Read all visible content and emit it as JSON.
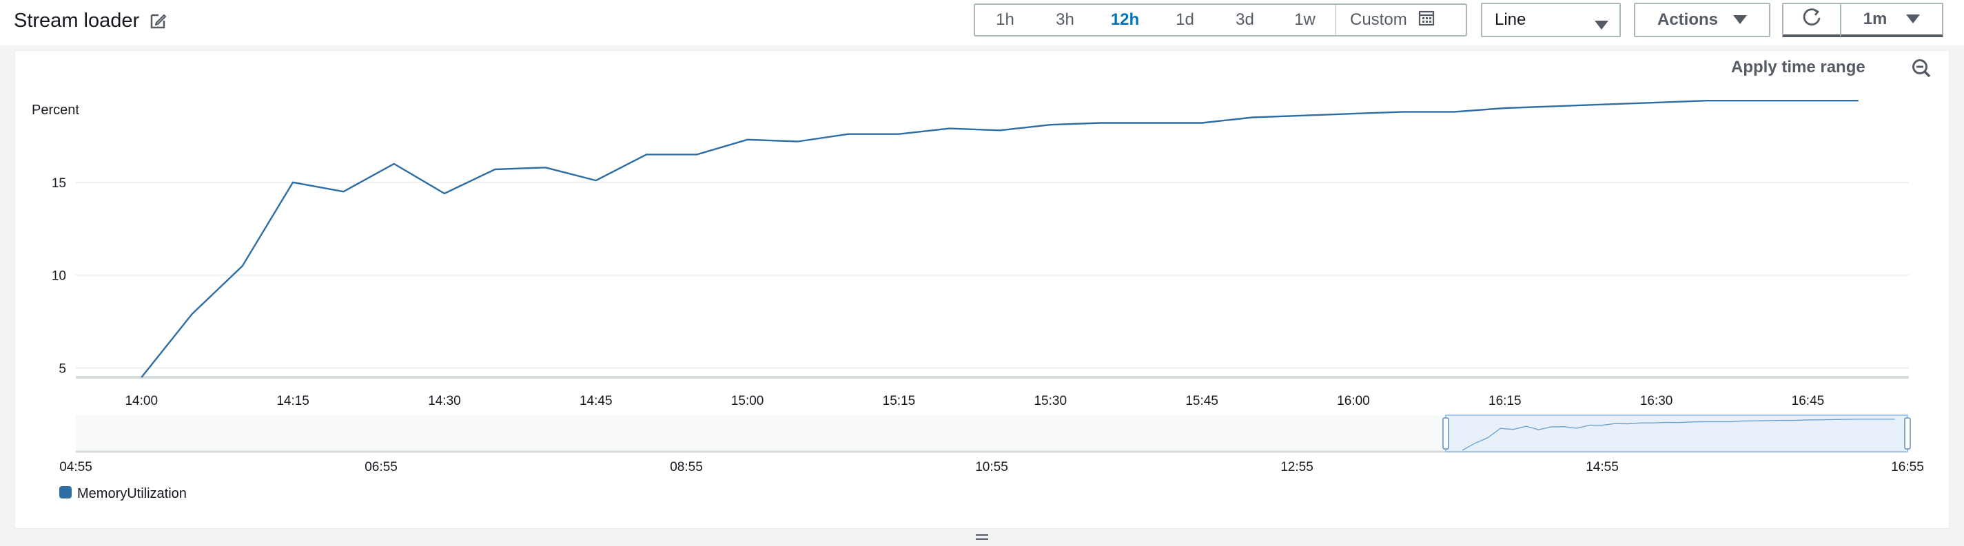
{
  "header": {
    "title": "Stream loader",
    "time_ranges": [
      "1h",
      "3h",
      "12h",
      "1d",
      "3d",
      "1w"
    ],
    "active_range": "12h",
    "custom_label": "Custom",
    "chart_type_select": "Line",
    "actions_label": "Actions",
    "refresh_period": "1m"
  },
  "panel": {
    "apply_time_range": "Apply time range"
  },
  "colors": {
    "series": "#2e6da4",
    "active_range": "#0073bb",
    "grid": "#eaeded"
  },
  "chart_data": {
    "type": "line",
    "ylabel": "Percent",
    "y_ticks": [
      5,
      10,
      15
    ],
    "ylim": [
      4.5,
      20
    ],
    "x_ticks": [
      "14:00",
      "14:15",
      "14:30",
      "14:45",
      "15:00",
      "15:15",
      "15:30",
      "15:45",
      "16:00",
      "16:15",
      "16:30",
      "16:45"
    ],
    "x_range": [
      "13:53:30",
      "16:55"
    ],
    "series": [
      {
        "name": "MemoryUtilization",
        "x": [
          "14:00",
          "14:05",
          "14:10",
          "14:15",
          "14:20",
          "14:25",
          "14:30",
          "14:35",
          "14:40",
          "14:45",
          "14:50",
          "14:55",
          "15:00",
          "15:05",
          "15:10",
          "15:15",
          "15:20",
          "15:25",
          "15:30",
          "15:35",
          "15:40",
          "15:45",
          "15:50",
          "15:55",
          "16:00",
          "16:05",
          "16:10",
          "16:15",
          "16:20",
          "16:25",
          "16:30",
          "16:35",
          "16:40",
          "16:45",
          "16:50"
        ],
        "values": [
          4.5,
          7.9,
          10.5,
          15.0,
          14.5,
          16.0,
          14.4,
          15.7,
          15.8,
          15.1,
          16.5,
          16.5,
          17.3,
          17.2,
          17.6,
          17.6,
          17.9,
          17.8,
          18.1,
          18.2,
          18.2,
          18.2,
          18.5,
          18.6,
          18.7,
          18.8,
          18.8,
          19.0,
          19.1,
          19.2,
          19.3,
          19.4,
          19.4,
          19.4,
          19.4
        ]
      }
    ],
    "navigator": {
      "x_ticks": [
        "04:55",
        "06:55",
        "08:55",
        "10:55",
        "12:55",
        "14:55",
        "16:55"
      ],
      "selection": [
        "13:53:30",
        "16:55"
      ]
    },
    "grid": true,
    "legend": "bottom-left"
  }
}
